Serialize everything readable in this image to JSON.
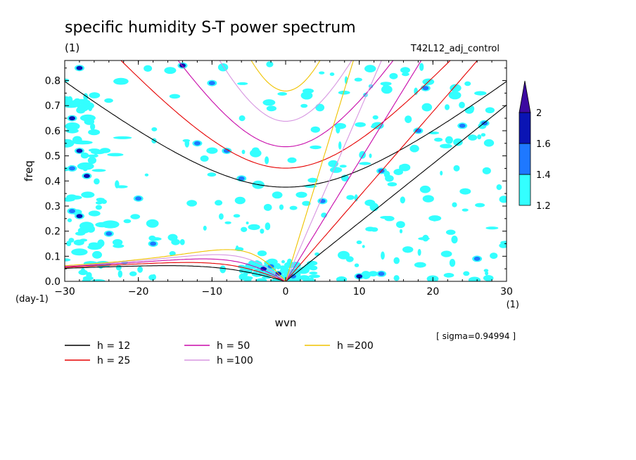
{
  "chart_data": {
    "type": "heatmap",
    "title": "specific humidity S-T power spectrum",
    "subtitle": "(1)",
    "run_label": "T42L12_adj_control",
    "xlabel": "wvn",
    "xunit": "(1)",
    "ylabel": "freq",
    "yunit": "(day-1)",
    "sigma_label": "[ sigma=0.94994 ]",
    "xlim": [
      -30,
      30
    ],
    "ylim": [
      0,
      0.88
    ],
    "xticks": [
      -30,
      -20,
      -10,
      0,
      10,
      20,
      30
    ],
    "yticks": [
      0.0,
      0.1,
      0.2,
      0.3,
      0.4,
      0.5,
      0.6,
      0.7,
      0.8
    ],
    "colorbar": {
      "levels": [
        "1.2",
        "1.4",
        "1.6",
        "2"
      ],
      "colors": [
        "#33ffff",
        "#1e78ff",
        "#0a14b4",
        "#3c0aa0"
      ]
    },
    "dispersion_curves": [
      {
        "label": "h = 12",
        "h": 12,
        "color": "#000000"
      },
      {
        "label": "h = 25",
        "h": 25,
        "color": "#e60000"
      },
      {
        "label": "h = 50",
        "h": 50,
        "color": "#c80aaa"
      },
      {
        "label": "h =100",
        "h": 100,
        "color": "#d796e1"
      },
      {
        "label": "h =200",
        "h": 200,
        "color": "#f0c300"
      }
    ],
    "highlights": [
      {
        "x": -28,
        "y": 0.85,
        "level": 3
      },
      {
        "x": -29,
        "y": 0.65,
        "level": 3
      },
      {
        "x": -28,
        "y": 0.52,
        "level": 3
      },
      {
        "x": -29,
        "y": 0.45,
        "level": 2
      },
      {
        "x": -27,
        "y": 0.42,
        "level": 3
      },
      {
        "x": -29,
        "y": 0.28,
        "level": 2
      },
      {
        "x": -28,
        "y": 0.26,
        "level": 3
      },
      {
        "x": -14,
        "y": 0.86,
        "level": 3
      },
      {
        "x": -10,
        "y": 0.79,
        "level": 2
      },
      {
        "x": -12,
        "y": 0.55,
        "level": 2
      },
      {
        "x": -8,
        "y": 0.52,
        "level": 2
      },
      {
        "x": -6,
        "y": 0.41,
        "level": 2
      },
      {
        "x": -3,
        "y": 0.05,
        "level": 3
      },
      {
        "x": -1,
        "y": 0.03,
        "level": 3
      },
      {
        "x": -2,
        "y": 0.06,
        "level": 2
      },
      {
        "x": 1,
        "y": 0.02,
        "level": 2
      },
      {
        "x": 10,
        "y": 0.02,
        "level": 3
      },
      {
        "x": 13,
        "y": 0.03,
        "level": 2
      },
      {
        "x": 26,
        "y": 0.09,
        "level": 2
      },
      {
        "x": 27,
        "y": 0.63,
        "level": 2
      },
      {
        "x": 19,
        "y": 0.77,
        "level": 2
      },
      {
        "x": 18,
        "y": 0.6,
        "level": 2
      },
      {
        "x": -18,
        "y": 0.15,
        "level": 2
      },
      {
        "x": -24,
        "y": 0.19,
        "level": 2
      },
      {
        "x": -20,
        "y": 0.33,
        "level": 2
      },
      {
        "x": 13,
        "y": 0.44,
        "level": 2
      },
      {
        "x": 5,
        "y": 0.32,
        "level": 2
      },
      {
        "x": 24,
        "y": 0.62,
        "level": 2
      }
    ]
  }
}
